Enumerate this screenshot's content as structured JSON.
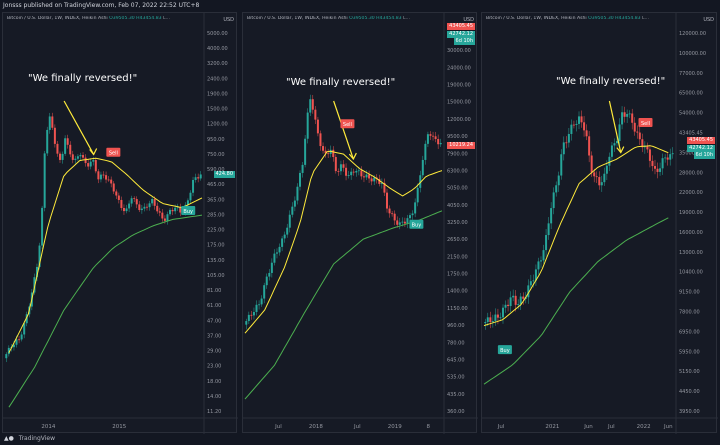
{
  "header": {
    "text": "Jonsss published on TradingView.com, Feb 07, 2022 22:52 UTC+8"
  },
  "footer": {
    "logo_icon": "tradingview-logo-icon",
    "label": "TradingView"
  },
  "colors": {
    "background": "#131722",
    "bull": "#26a69a",
    "bear": "#ef5350",
    "fast_line": "#ffeb3b",
    "slow_line": "#4caf50",
    "sell_badge": "#ef5350",
    "buy_badge": "#26a69a"
  },
  "panels": [
    {
      "title": "Bitcoin / U.S. Dollar, 1W, INDEX, Heikin Ashi",
      "ohlc": {
        "o": "O39505.30",
        "h": "H43454.83",
        "tail": "L..."
      },
      "quote": "\"We finally reversed!\"",
      "usd": "USD",
      "tags": [
        {
          "text": "424.80",
          "color": "teal"
        }
      ],
      "badges": [
        "Sell",
        "Buy"
      ],
      "icons": [
        "annotation-arrow-icon",
        "sell-badge-icon",
        "buy-badge-icon"
      ]
    },
    {
      "title": "Bitcoin / U.S. Dollar, 1W, INDEX, Heikin Ashi",
      "ohlc": {
        "o": "O39505.30",
        "h": "H43454.83",
        "tail": "L..."
      },
      "quote": "\"We finally reversed!\"",
      "usd": "USD",
      "tags": [
        {
          "text": "43405.45",
          "color": "red"
        },
        {
          "text": "42742.12",
          "color": "teal"
        },
        {
          "text": "6d 10h",
          "color": "teal"
        },
        {
          "text": "10219.24",
          "color": "red"
        }
      ],
      "badges": [
        "Sell",
        "Buy"
      ],
      "icons": [
        "annotation-arrow-icon",
        "sell-badge-icon",
        "buy-badge-icon"
      ]
    },
    {
      "title": "Bitcoin / U.S. Dollar, 1W, INDEX, Heikin Ashi",
      "ohlc": {
        "o": "O39505.30",
        "h": "H43454.83",
        "tail": "L..."
      },
      "quote": "\"We finally reversed!\"",
      "usd": "USD",
      "tags": [
        {
          "text": "43405.45",
          "color": "red"
        },
        {
          "text": "42742.12",
          "color": "teal"
        },
        {
          "text": "6d 10h",
          "color": "teal"
        }
      ],
      "badges": [
        "Sell",
        "Buy"
      ],
      "icons": [
        "annotation-arrow-icon",
        "sell-badge-icon",
        "buy-badge-icon"
      ]
    }
  ],
  "chart_data": [
    {
      "type": "candlestick",
      "title": "Bitcoin / U.S. Dollar, 1W, INDEX, Heikin Ashi",
      "ylabel": "USD",
      "yscale": "log",
      "ylim": [
        9.11,
        5000
      ],
      "yticks": [
        "5000.00",
        "4000.00",
        "3200.00",
        "2400.00",
        "1900.00",
        "1500.00",
        "1200.00",
        "950.00",
        "750.00",
        "590.00",
        "465.00",
        "365.00",
        "285.00",
        "225.00",
        "175.00",
        "135.00",
        "105.00",
        "81.00",
        "61.00",
        "47.00",
        "37.00",
        "29.00",
        "23.00",
        "18.00",
        "14.00",
        "11.20"
      ],
      "xticks": [
        {
          "label": "2014",
          "x": 0.22
        },
        {
          "label": "2015",
          "x": 0.58
        }
      ],
      "annotation": "\"We finally reversed!\"",
      "signals": [
        {
          "label": "Sell",
          "x": 0.55,
          "y": 600
        },
        {
          "label": "Buy",
          "x": 0.93,
          "y": 235
        }
      ],
      "price_path": [
        [
          0.0,
          22
        ],
        [
          0.04,
          27
        ],
        [
          0.08,
          30
        ],
        [
          0.11,
          40
        ],
        [
          0.14,
          60
        ],
        [
          0.17,
          100
        ],
        [
          0.19,
          170
        ],
        [
          0.21,
          700
        ],
        [
          0.23,
          1100
        ],
        [
          0.25,
          850
        ],
        [
          0.27,
          600
        ],
        [
          0.29,
          500
        ],
        [
          0.31,
          780
        ],
        [
          0.33,
          620
        ],
        [
          0.36,
          520
        ],
        [
          0.39,
          600
        ],
        [
          0.42,
          480
        ],
        [
          0.45,
          540
        ],
        [
          0.48,
          400
        ],
        [
          0.51,
          420
        ],
        [
          0.54,
          370
        ],
        [
          0.56,
          330
        ],
        [
          0.59,
          260
        ],
        [
          0.62,
          230
        ],
        [
          0.65,
          300
        ],
        [
          0.68,
          250
        ],
        [
          0.71,
          240
        ],
        [
          0.75,
          280
        ],
        [
          0.78,
          240
        ],
        [
          0.81,
          200
        ],
        [
          0.84,
          230
        ],
        [
          0.87,
          250
        ],
        [
          0.9,
          230
        ],
        [
          0.93,
          260
        ],
        [
          0.96,
          380
        ],
        [
          1.0,
          425
        ]
      ],
      "fast_line": [
        [
          0.02,
          24
        ],
        [
          0.12,
          45
        ],
        [
          0.22,
          190
        ],
        [
          0.3,
          420
        ],
        [
          0.38,
          530
        ],
        [
          0.46,
          550
        ],
        [
          0.54,
          520
        ],
        [
          0.62,
          420
        ],
        [
          0.7,
          330
        ],
        [
          0.8,
          265
        ],
        [
          0.9,
          248
        ],
        [
          1.0,
          290
        ]
      ],
      "slow_line": [
        [
          0.02,
          10
        ],
        [
          0.15,
          19
        ],
        [
          0.3,
          48
        ],
        [
          0.45,
          95
        ],
        [
          0.55,
          130
        ],
        [
          0.65,
          160
        ],
        [
          0.75,
          185
        ],
        [
          0.85,
          205
        ],
        [
          1.0,
          220
        ]
      ]
    },
    {
      "type": "candlestick",
      "title": "Bitcoin / U.S. Dollar, 1W, INDEX, Heikin Ashi",
      "ylabel": "USD",
      "yscale": "log",
      "ylim": [
        300,
        50000
      ],
      "yticks": [
        "40000.00",
        "30000.00",
        "24000.00",
        "19000.00",
        "15000.00",
        "12000.00",
        "9500.00",
        "7900.00",
        "6300.00",
        "5050.00",
        "4050.00",
        "3250.00",
        "2650.00",
        "2150.00",
        "1750.00",
        "1400.00",
        "1150.00",
        "960.00",
        "780.00",
        "645.00",
        "535.00",
        "435.00",
        "360.00"
      ],
      "xticks": [
        {
          "label": "Jul",
          "x": 0.17
        },
        {
          "label": "2018",
          "x": 0.36
        },
        {
          "label": "Jul",
          "x": 0.57
        },
        {
          "label": "2019",
          "x": 0.76
        },
        {
          "label": "8",
          "x": 0.93
        }
      ],
      "annotation": "\"We finally reversed!\"",
      "signals": [
        {
          "label": "Sell",
          "x": 0.52,
          "y": 13000
        },
        {
          "label": "Buy",
          "x": 0.87,
          "y": 3500
        }
      ],
      "price_path": [
        [
          0.0,
          950
        ],
        [
          0.04,
          1100
        ],
        [
          0.08,
          1250
        ],
        [
          0.12,
          1800
        ],
        [
          0.16,
          2400
        ],
        [
          0.2,
          2900
        ],
        [
          0.24,
          4100
        ],
        [
          0.27,
          5500
        ],
        [
          0.3,
          8000
        ],
        [
          0.32,
          13500
        ],
        [
          0.34,
          19000
        ],
        [
          0.36,
          14000
        ],
        [
          0.38,
          11000
        ],
        [
          0.41,
          8500
        ],
        [
          0.44,
          9500
        ],
        [
          0.47,
          7000
        ],
        [
          0.5,
          7600
        ],
        [
          0.53,
          6500
        ],
        [
          0.56,
          7200
        ],
        [
          0.6,
          6700
        ],
        [
          0.64,
          6400
        ],
        [
          0.67,
          6300
        ],
        [
          0.7,
          6100
        ],
        [
          0.73,
          4300
        ],
        [
          0.76,
          3800
        ],
        [
          0.79,
          3500
        ],
        [
          0.82,
          3700
        ],
        [
          0.85,
          3900
        ],
        [
          0.88,
          5200
        ],
        [
          0.91,
          8500
        ],
        [
          0.94,
          12000
        ],
        [
          0.97,
          10500
        ],
        [
          1.0,
          10219
        ]
      ],
      "fast_line": [
        [
          0.0,
          850
        ],
        [
          0.1,
          1150
        ],
        [
          0.2,
          2000
        ],
        [
          0.28,
          3600
        ],
        [
          0.34,
          6800
        ],
        [
          0.42,
          9200
        ],
        [
          0.5,
          8800
        ],
        [
          0.58,
          7300
        ],
        [
          0.66,
          6500
        ],
        [
          0.74,
          5600
        ],
        [
          0.8,
          5100
        ],
        [
          0.86,
          5600
        ],
        [
          0.92,
          6600
        ],
        [
          1.0,
          7100
        ]
      ],
      "slow_line": [
        [
          0.0,
          360
        ],
        [
          0.15,
          560
        ],
        [
          0.3,
          1100
        ],
        [
          0.45,
          2100
        ],
        [
          0.6,
          2900
        ],
        [
          0.75,
          3350
        ],
        [
          0.88,
          3700
        ],
        [
          1.0,
          4200
        ]
      ]
    },
    {
      "type": "candlestick",
      "title": "Bitcoin / U.S. Dollar, 1W, INDEX, Heikin Ashi",
      "ylabel": "USD",
      "yscale": "log",
      "ylim": [
        3900,
        150000
      ],
      "yticks": [
        "120000.00",
        "100000.00",
        "77000.00",
        "65000.00",
        "54000.00",
        "43405.45",
        "35000.00",
        "28000.00",
        "22000.00",
        "19000.00",
        "16000.00",
        "13000.00",
        "10400.00",
        "9150.00",
        "7800.00",
        "6950.00",
        "5950.00",
        "5150.00",
        "4450.00",
        "3950.00"
      ],
      "xticks": [
        {
          "label": "Jul",
          "x": 0.09
        },
        {
          "label": "2021",
          "x": 0.36
        },
        {
          "label": "Jun",
          "x": 0.55
        },
        {
          "label": "Jul",
          "x": 0.67
        },
        {
          "label": "2022",
          "x": 0.84
        },
        {
          "label": "Jun",
          "x": 0.97
        }
      ],
      "annotation": "\"We finally reversed!\"",
      "signals": [
        {
          "label": "Sell",
          "x": 0.85,
          "y": 58000
        },
        {
          "label": "Buy",
          "x": 0.11,
          "y": 7000
        }
      ],
      "price_path": [
        [
          0.0,
          9000
        ],
        [
          0.04,
          9300
        ],
        [
          0.08,
          9500
        ],
        [
          0.12,
          10500
        ],
        [
          0.15,
          11500
        ],
        [
          0.18,
          10800
        ],
        [
          0.22,
          11500
        ],
        [
          0.26,
          13500
        ],
        [
          0.3,
          16000
        ],
        [
          0.33,
          19000
        ],
        [
          0.36,
          27000
        ],
        [
          0.39,
          33000
        ],
        [
          0.42,
          46000
        ],
        [
          0.45,
          52000
        ],
        [
          0.48,
          58000
        ],
        [
          0.51,
          60000
        ],
        [
          0.54,
          55000
        ],
        [
          0.56,
          42000
        ],
        [
          0.58,
          36000
        ],
        [
          0.61,
          33000
        ],
        [
          0.64,
          35000
        ],
        [
          0.67,
          45000
        ],
        [
          0.7,
          48000
        ],
        [
          0.73,
          62000
        ],
        [
          0.76,
          64000
        ],
        [
          0.79,
          58000
        ],
        [
          0.82,
          50000
        ],
        [
          0.85,
          47000
        ],
        [
          0.88,
          42000
        ],
        [
          0.91,
          36000
        ],
        [
          0.94,
          40000
        ],
        [
          0.97,
          42742
        ]
      ],
      "fast_line": [
        [
          0.0,
          8800
        ],
        [
          0.1,
          9300
        ],
        [
          0.2,
          10800
        ],
        [
          0.3,
          14500
        ],
        [
          0.4,
          22500
        ],
        [
          0.5,
          33000
        ],
        [
          0.6,
          38500
        ],
        [
          0.7,
          41500
        ],
        [
          0.8,
          46500
        ],
        [
          0.88,
          47000
        ],
        [
          0.97,
          44000
        ]
      ],
      "slow_line": [
        [
          0.0,
          5100
        ],
        [
          0.15,
          6100
        ],
        [
          0.3,
          8000
        ],
        [
          0.45,
          12000
        ],
        [
          0.6,
          16000
        ],
        [
          0.75,
          19500
        ],
        [
          0.9,
          22500
        ],
        [
          0.97,
          24000
        ]
      ]
    }
  ]
}
